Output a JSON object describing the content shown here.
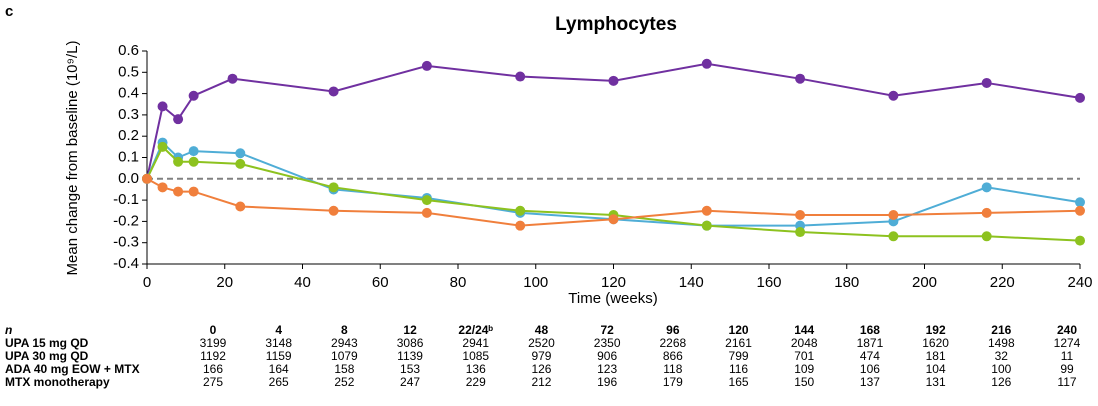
{
  "panel_label": "c",
  "chart_data": {
    "type": "line",
    "title": "Lymphocytes",
    "y_label": "Mean change from baseline (10⁹/L)",
    "x_label": "Time (weeks)",
    "xlim": [
      0,
      240
    ],
    "xticks": [
      0,
      20,
      40,
      60,
      80,
      100,
      120,
      140,
      160,
      180,
      200,
      220,
      240
    ],
    "ylim": [
      -0.4,
      0.6
    ],
    "yticks": [
      0.6,
      0.5,
      0.4,
      0.3,
      0.2,
      0.1,
      {
        "value": 0,
        "label": "0.0"
      },
      -0.1,
      -0.2,
      -0.3,
      -0.4
    ],
    "zero_line": "dashed",
    "series": [
      {
        "color": "#7030a0",
        "x": [
          0,
          4,
          8,
          12,
          22,
          48,
          72,
          96,
          120,
          144,
          168,
          192,
          216,
          240
        ],
        "values": [
          0,
          0.34,
          0.28,
          0.39,
          0.47,
          0.41,
          0.53,
          0.48,
          0.46,
          0.54,
          0.47,
          0.39,
          0.45,
          0.38
        ]
      },
      {
        "color": "#4fadd6",
        "x": [
          0,
          4,
          8,
          12,
          24,
          48,
          72,
          96,
          120,
          144,
          168,
          192,
          216,
          240
        ],
        "values": [
          0,
          0.17,
          0.1,
          0.13,
          0.12,
          -0.05,
          -0.09,
          -0.16,
          -0.19,
          -0.22,
          -0.22,
          -0.2,
          -0.04,
          -0.11
        ]
      },
      {
        "color": "#8dc21f",
        "x": [
          0,
          4,
          8,
          12,
          24,
          48,
          72,
          96,
          120,
          144,
          168,
          192,
          216,
          240
        ],
        "values": [
          0,
          0.15,
          0.08,
          0.08,
          0.07,
          -0.04,
          -0.1,
          -0.15,
          -0.17,
          -0.22,
          -0.25,
          -0.27,
          -0.27,
          -0.29
        ]
      },
      {
        "color": "#f07f3c",
        "x": [
          0,
          4,
          8,
          12,
          24,
          48,
          72,
          96,
          120,
          144,
          168,
          192,
          216,
          240
        ],
        "values": [
          0,
          -0.04,
          -0.06,
          -0.06,
          -0.13,
          -0.15,
          -0.16,
          -0.22,
          -0.19,
          -0.15,
          -0.17,
          -0.17,
          -0.16,
          -0.15
        ]
      }
    ]
  },
  "table": {
    "header_label": "n",
    "columns": [
      0,
      4,
      8,
      12,
      "22/24ᵇ",
      48,
      72,
      96,
      120,
      144,
      168,
      192,
      216,
      240
    ],
    "rows": [
      {
        "label": "UPA 15 mg QD",
        "values": [
          3199,
          3148,
          2943,
          3086,
          2941,
          2520,
          2350,
          2268,
          2161,
          2048,
          1871,
          1620,
          1498,
          1274
        ]
      },
      {
        "label": "UPA 30 mg QD",
        "values": [
          1192,
          1159,
          1079,
          1139,
          1085,
          979,
          906,
          866,
          799,
          701,
          474,
          181,
          32,
          11
        ]
      },
      {
        "label": "ADA 40 mg EOW + MTX",
        "values": [
          166,
          164,
          158,
          153,
          136,
          126,
          123,
          118,
          116,
          109,
          106,
          104,
          100,
          99
        ]
      },
      {
        "label": "MTX monotherapy",
        "values": [
          275,
          265,
          252,
          247,
          229,
          212,
          196,
          179,
          165,
          150,
          137,
          131,
          126,
          117
        ]
      }
    ]
  }
}
